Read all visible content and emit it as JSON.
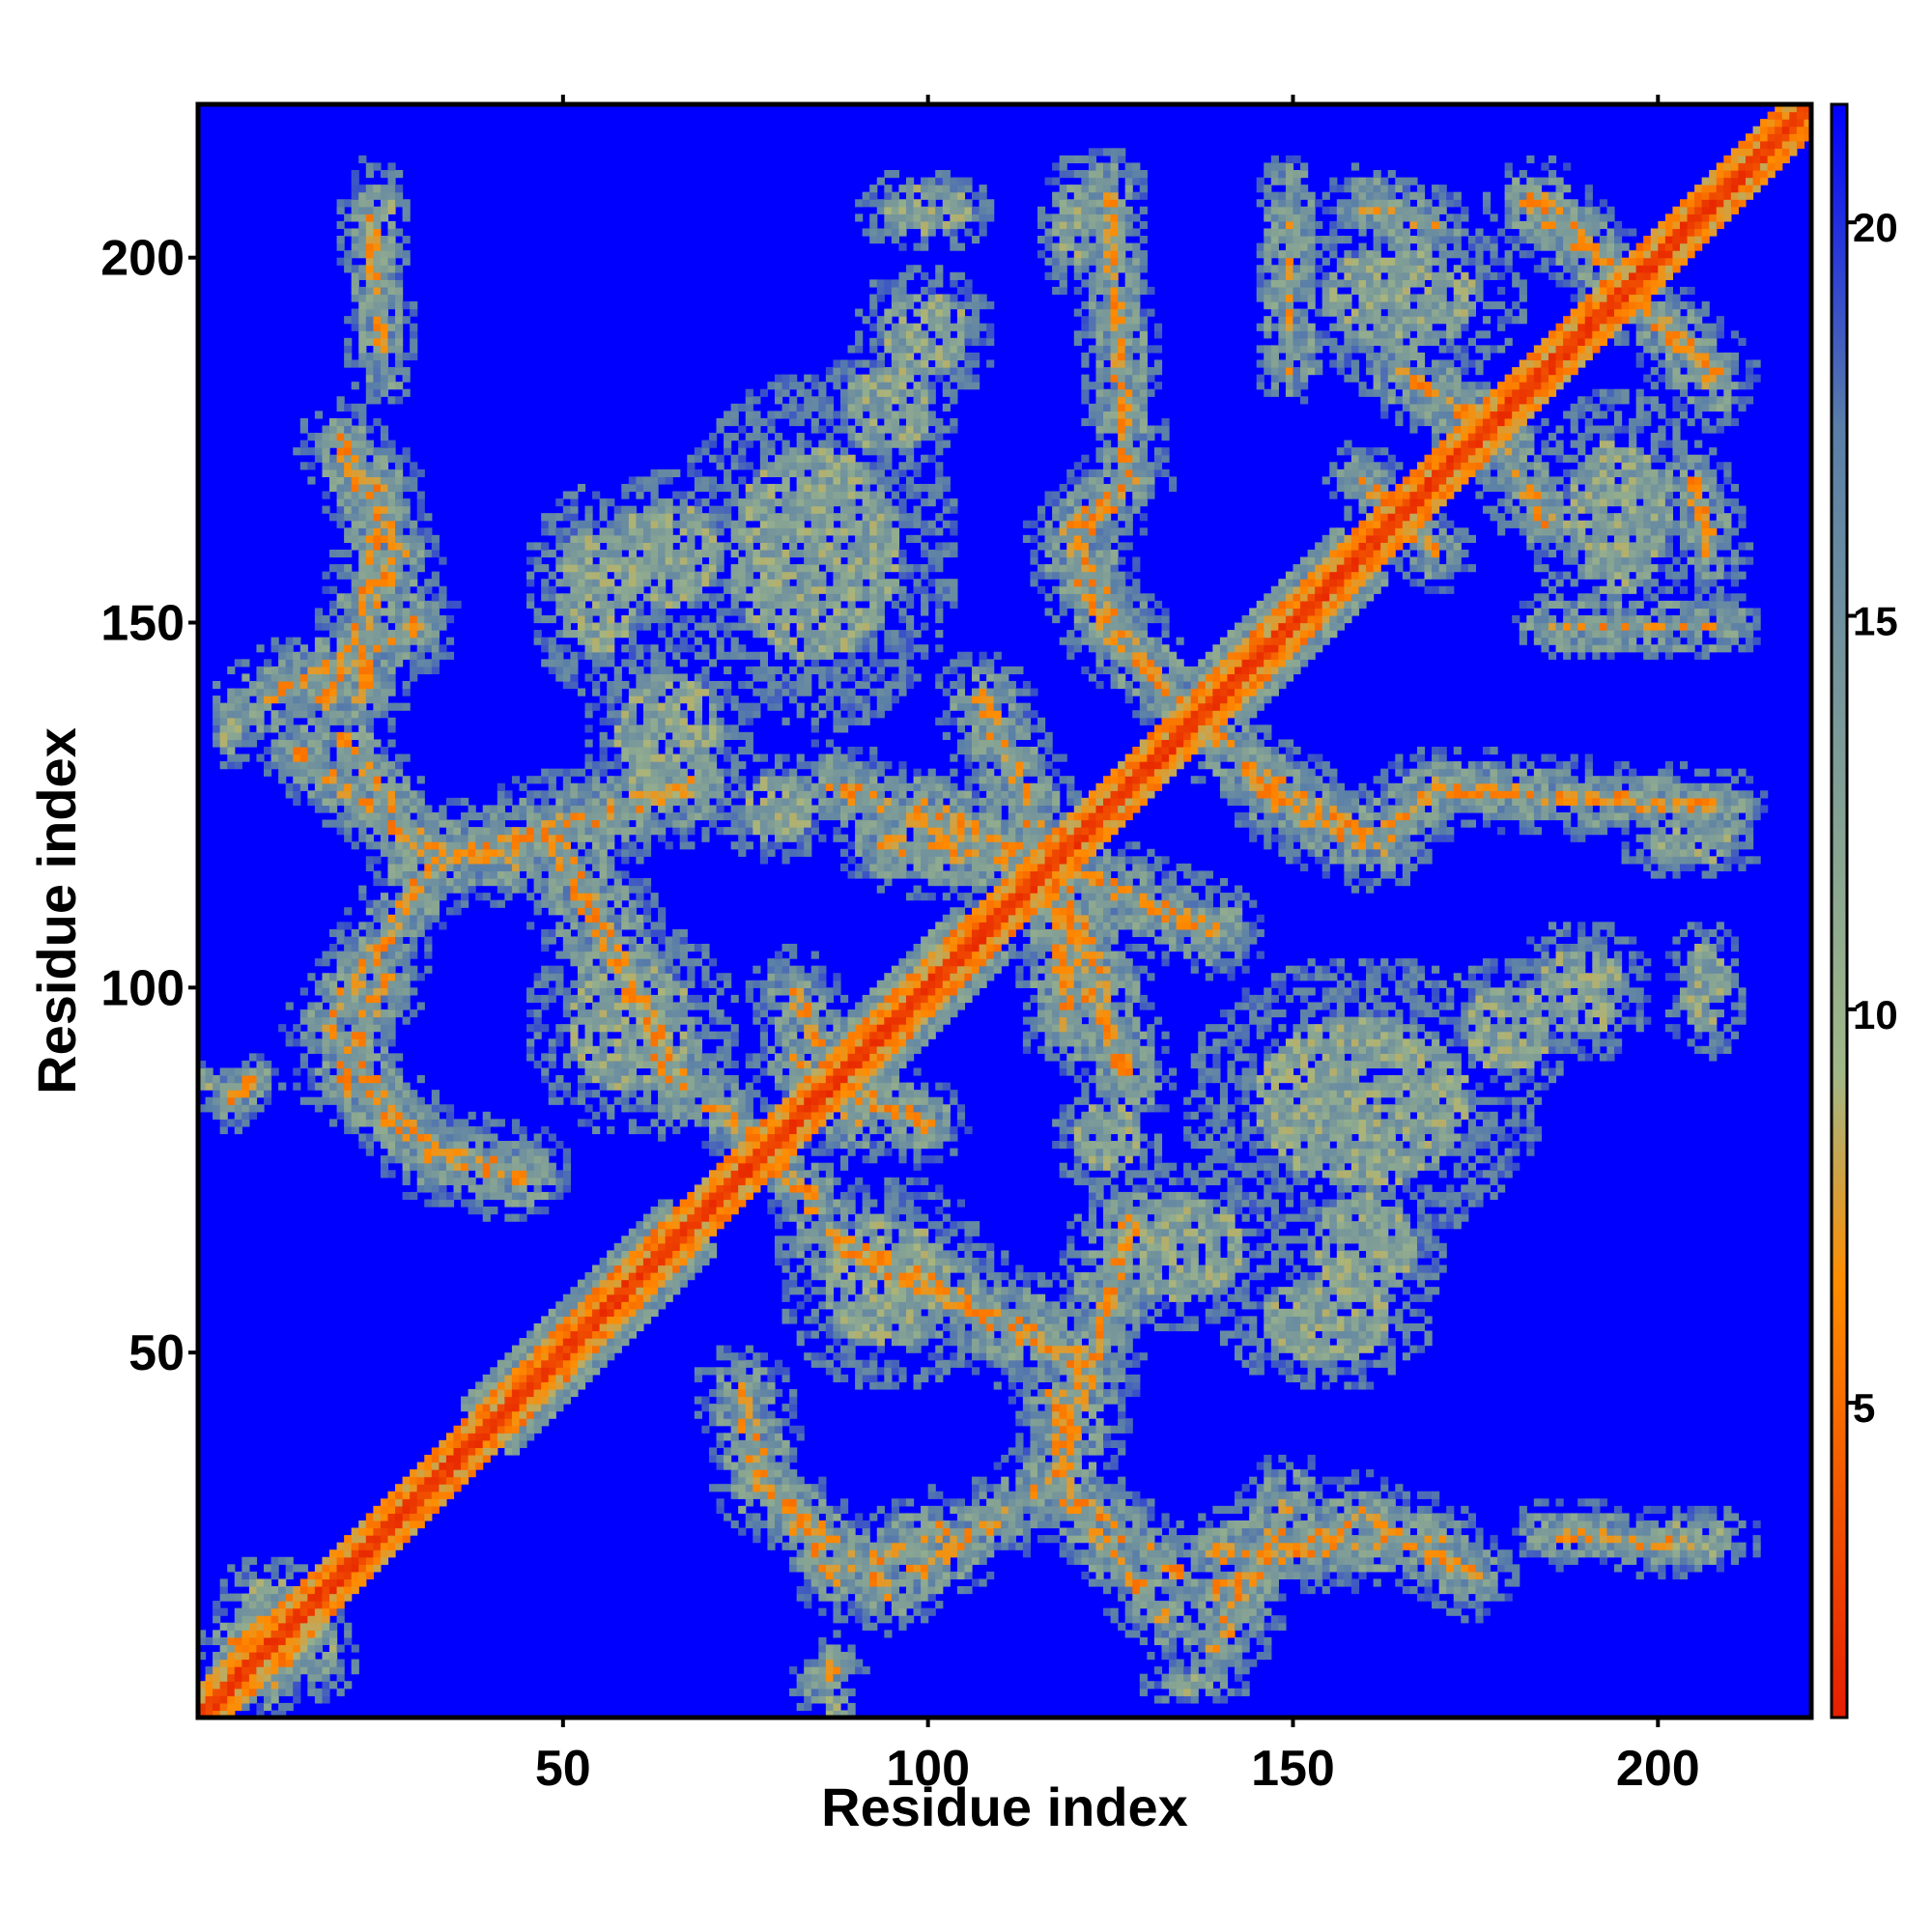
{
  "chart_data": {
    "type": "heatmap",
    "title": "",
    "xlabel": "Residue index",
    "ylabel": "Residue index",
    "xlim": [
      0,
      221
    ],
    "ylim": [
      0,
      221
    ],
    "x_ticks": [
      50,
      100,
      150,
      200
    ],
    "y_ticks": [
      50,
      100,
      150,
      200
    ],
    "colorbar": {
      "range": [
        1,
        21.5
      ],
      "ticks": [
        5,
        10,
        15,
        20
      ],
      "colors": [
        "#e61e00",
        "#ff8c00",
        "#a0b888",
        "#5a7fa8",
        "#0000ff"
      ],
      "stops": [
        0,
        0.27,
        0.4,
        0.8,
        1
      ]
    },
    "background_value": 21.5,
    "diagonal": {
      "main_width": 1.2,
      "halo_width": 3.5,
      "broad_halo_width": 5,
      "broad_halo_ranges": [
        [
          40,
          68
        ],
        [
          88,
          108
        ],
        [
          140,
          160
        ]
      ]
    },
    "contact_ridges": [
      {
        "from": [
          20,
          135
        ],
        "to": [
          33,
          118
        ],
        "width": 1.6
      },
      {
        "from": [
          33,
          118
        ],
        "to": [
          18,
          95
        ],
        "width": 1.8
      },
      {
        "from": [
          18,
          95
        ],
        "to": [
          33,
          78
        ],
        "width": 1.6
      },
      {
        "from": [
          33,
          118
        ],
        "to": [
          68,
          128
        ],
        "width": 2.2
      },
      {
        "from": [
          50,
          120
        ],
        "to": [
          66,
          88
        ],
        "width": 2.5
      },
      {
        "from": [
          25,
          170
        ],
        "to": [
          23,
          140
        ],
        "width": 1.8
      },
      {
        "from": [
          10,
          140
        ],
        "to": [
          30,
          150
        ],
        "width": 2.0
      },
      {
        "from": [
          80,
          30
        ],
        "to": [
          88,
          20
        ],
        "width": 1.6
      },
      {
        "from": [
          88,
          20
        ],
        "to": [
          102,
          26
        ],
        "width": 1.8
      },
      {
        "from": [
          78,
          32
        ],
        "to": [
          75,
          45
        ],
        "width": 2.0
      },
      {
        "from": [
          120,
          30
        ],
        "to": [
          133,
          14
        ],
        "width": 1.6
      },
      {
        "from": [
          120,
          30
        ],
        "to": [
          118,
          45
        ],
        "width": 2.0
      },
      {
        "from": [
          140,
          18
        ],
        "to": [
          160,
          28
        ],
        "width": 1.8
      },
      {
        "from": [
          160,
          28
        ],
        "to": [
          175,
          20
        ],
        "width": 1.8
      },
      {
        "from": [
          185,
          26
        ],
        "to": [
          206,
          24
        ],
        "width": 1.4
      },
      {
        "from": [
          72,
          85
        ],
        "to": [
          85,
          70
        ],
        "width": 1.4
      },
      {
        "from": [
          82,
          90
        ],
        "to": [
          100,
          82
        ],
        "width": 1.8
      },
      {
        "from": [
          95,
          120
        ],
        "to": [
          115,
          118
        ],
        "width": 2.0
      },
      {
        "from": [
          115,
          118
        ],
        "to": [
          128,
          88
        ],
        "width": 2.0
      },
      {
        "from": [
          100,
          125
        ],
        "to": [
          140,
          108
        ],
        "width": 2.0
      },
      {
        "from": [
          130,
          145
        ],
        "to": [
          145,
          130
        ],
        "width": 1.8
      },
      {
        "from": [
          145,
          130
        ],
        "to": [
          163,
          120
        ],
        "width": 1.8
      },
      {
        "from": [
          163,
          120
        ],
        "to": [
          170,
          128
        ],
        "width": 1.8
      },
      {
        "from": [
          170,
          128
        ],
        "to": [
          210,
          125
        ],
        "width": 1.6
      },
      {
        "from": [
          120,
          160
        ],
        "to": [
          128,
          170
        ],
        "width": 1.8
      },
      {
        "from": [
          120,
          160
        ],
        "to": [
          126,
          148
        ],
        "width": 1.8
      },
      {
        "from": [
          126,
          148
        ],
        "to": [
          135,
          140
        ],
        "width": 1.8
      },
      {
        "from": [
          183,
          208
        ],
        "to": [
          195,
          198
        ],
        "width": 1.8
      },
      {
        "from": [
          195,
          198
        ],
        "to": [
          208,
          185
        ],
        "width": 1.8
      },
      {
        "from": [
          175,
          180
        ],
        "to": [
          185,
          165
        ],
        "width": 1.8
      },
      {
        "from": [
          160,
          170
        ],
        "to": [
          170,
          160
        ],
        "width": 1.6
      },
      {
        "from": [
          205,
          170
        ],
        "to": [
          208,
          160
        ],
        "width": 1.6
      },
      {
        "from": [
          185,
          150
        ],
        "to": [
          210,
          150
        ],
        "width": 1.4
      },
      {
        "from": [
          10,
          5
        ],
        "to": [
          14,
          10
        ],
        "width": 1.4
      },
      {
        "from": [
          85,
          5
        ],
        "to": [
          88,
          8
        ],
        "width": 1.2
      }
    ],
    "contact_blobs": [
      {
        "center": [
          100,
          207
        ],
        "radius": [
          10,
          6
        ]
      },
      {
        "center": [
          120,
          205
        ],
        "radius": [
          5,
          10
        ]
      },
      {
        "center": [
          95,
          180
        ],
        "radius": [
          10,
          10
        ]
      },
      {
        "center": [
          80,
          160
        ],
        "radius": [
          10,
          15
        ]
      },
      {
        "center": [
          55,
          155
        ],
        "radius": [
          10,
          15
        ]
      },
      {
        "center": [
          165,
          195
        ],
        "radius": [
          18,
          12
        ]
      },
      {
        "center": [
          195,
          165
        ],
        "radius": [
          12,
          18
        ]
      },
      {
        "center": [
          160,
          85
        ],
        "radius": [
          25,
          20
        ]
      },
      {
        "center": [
          190,
          100
        ],
        "radius": [
          10,
          10
        ]
      },
      {
        "center": [
          207,
          102
        ],
        "radius": [
          5,
          8
        ]
      },
      {
        "center": [
          135,
          65
        ],
        "radius": [
          15,
          12
        ]
      },
      {
        "center": [
          160,
          65
        ],
        "radius": [
          12,
          12
        ]
      },
      {
        "center": [
          125,
          80
        ],
        "radius": [
          8,
          8
        ]
      },
      {
        "center": [
          25,
          205
        ],
        "radius": [
          5,
          10
        ]
      },
      {
        "center": [
          2,
          88
        ],
        "radius": [
          3,
          3
        ]
      },
      {
        "center": [
          10,
          15
        ],
        "radius": [
          8,
          8
        ]
      },
      {
        "center": [
          137,
          5
        ],
        "radius": [
          8,
          3
        ]
      },
      {
        "center": [
          60,
          95
        ],
        "radius": [
          15,
          15
        ]
      },
      {
        "center": [
          95,
          60
        ],
        "radius": [
          15,
          15
        ]
      }
    ]
  }
}
